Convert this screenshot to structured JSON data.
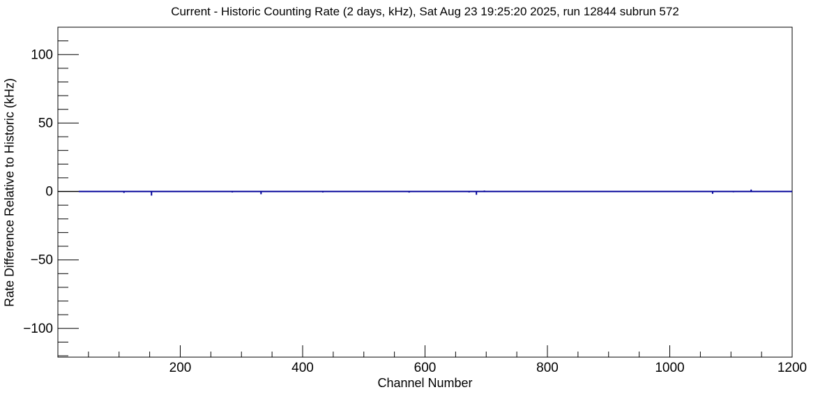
{
  "chart_data": {
    "type": "line",
    "title": "Current - Historic Counting Rate (2 days, kHz), Sat Aug 23 19:25:20 2025, run 12844 subrun 572",
    "xlabel": "Channel Number",
    "ylabel": "Rate Difference Relative to Historic (kHz)",
    "xlim": [
      0,
      1200
    ],
    "ylim": [
      -121,
      120
    ],
    "x_major_ticks": [
      200,
      400,
      600,
      800,
      1000,
      1200
    ],
    "x_minor_step": 50,
    "y_major_ticks": [
      -100,
      -50,
      0,
      50,
      100
    ],
    "y_minor_step": 10,
    "grid": false,
    "legend": null,
    "background_color": "#ffffff",
    "frame_color": "#000000",
    "line_color": "#000099",
    "baseline_value": 0,
    "black_baseline_segment_channels": [
      0,
      34
    ],
    "series": [
      {
        "name": "rate-difference",
        "baseline": 0,
        "spikes": [
          {
            "channel": 108,
            "value": -1.0
          },
          {
            "channel": 153,
            "value": -3.0
          },
          {
            "channel": 170,
            "value": 0.5
          },
          {
            "channel": 233,
            "value": 0.5
          },
          {
            "channel": 285,
            "value": -0.7
          },
          {
            "channel": 332,
            "value": -2.0
          },
          {
            "channel": 433,
            "value": -0.7
          },
          {
            "channel": 574,
            "value": -0.8
          },
          {
            "channel": 672,
            "value": -0.7
          },
          {
            "channel": 684,
            "value": -2.4
          },
          {
            "channel": 697,
            "value": 0.7
          },
          {
            "channel": 734,
            "value": -0.4
          },
          {
            "channel": 775,
            "value": -0.5
          },
          {
            "channel": 952,
            "value": 0.5
          },
          {
            "channel": 971,
            "value": -0.5
          },
          {
            "channel": 1070,
            "value": -1.7
          },
          {
            "channel": 1104,
            "value": -0.6
          },
          {
            "channel": 1133,
            "value": 1.4
          }
        ]
      }
    ]
  }
}
